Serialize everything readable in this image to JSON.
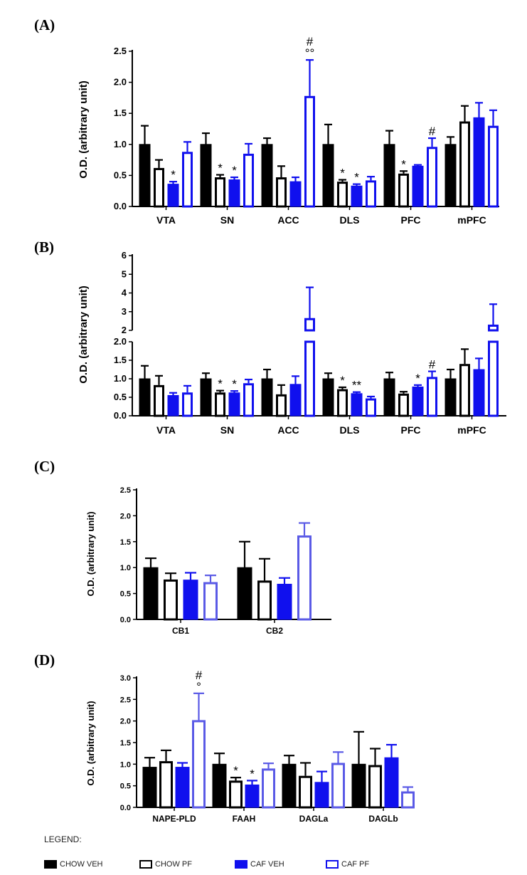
{
  "colors": {
    "chow_veh": "#000000",
    "chow_pf": "#000000",
    "caf_veh": "#1010ee",
    "caf_pf": "#1010ee",
    "caf_pf_light": "#5a5ae6"
  },
  "legend": {
    "title": "LEGEND:",
    "items": [
      {
        "label": "CHOW VEH",
        "fill": "#000000",
        "stroke": "#000000"
      },
      {
        "label": "CHOW PF",
        "fill": "#ffffff",
        "stroke": "#000000"
      },
      {
        "label": "CAF VEH",
        "fill": "#1010ee",
        "stroke": "#1010ee"
      },
      {
        "label": "CAF PF",
        "fill": "#ffffff",
        "stroke": "#1010ee"
      }
    ]
  },
  "chart_data": [
    {
      "panel": "(A)",
      "type": "bar",
      "ylabel": "O.D. (arbitrary unit)",
      "ylim": [
        0,
        2.5
      ],
      "yticks": [
        "0.0",
        "0.5",
        "1.0",
        "1.5",
        "2.0",
        "2.5"
      ],
      "categories": [
        "VTA",
        "SN",
        "ACC",
        "DLS",
        "PFC",
        "mPFC"
      ],
      "series": [
        {
          "name": "CHOW VEH",
          "style": "filled-black",
          "values": [
            1.0,
            1.0,
            1.0,
            1.0,
            1.0,
            1.0
          ],
          "errors": [
            0.3,
            0.18,
            0.1,
            0.32,
            0.22,
            0.12
          ]
        },
        {
          "name": "CHOW PF",
          "style": "open-black",
          "values": [
            0.62,
            0.47,
            0.47,
            0.4,
            0.53,
            1.37
          ],
          "errors": [
            0.13,
            0.04,
            0.18,
            0.03,
            0.04,
            0.25
          ]
        },
        {
          "name": "CAF VEH",
          "style": "filled-blue",
          "values": [
            0.36,
            0.43,
            0.4,
            0.33,
            0.65,
            1.43
          ],
          "errors": [
            0.04,
            0.04,
            0.07,
            0.03,
            0.02,
            0.24
          ]
        },
        {
          "name": "CAF PF",
          "style": "open-blue",
          "values": [
            0.88,
            0.85,
            1.78,
            0.42,
            0.96,
            1.3
          ],
          "errors": [
            0.16,
            0.16,
            0.58,
            0.06,
            0.14,
            0.25
          ]
        }
      ],
      "annotations": [
        {
          "category": 0,
          "series": 2,
          "text": "*"
        },
        {
          "category": 1,
          "series": 1,
          "text": "*"
        },
        {
          "category": 1,
          "series": 2,
          "text": "*"
        },
        {
          "category": 2,
          "series": 3,
          "text": "°°"
        },
        {
          "category": 2,
          "series": 3,
          "text": "#",
          "row": 2
        },
        {
          "category": 3,
          "series": 1,
          "text": "*"
        },
        {
          "category": 3,
          "series": 2,
          "text": "*"
        },
        {
          "category": 4,
          "series": 1,
          "text": "*"
        },
        {
          "category": 4,
          "series": 3,
          "text": "#"
        }
      ]
    },
    {
      "panel": "(B)",
      "type": "bar",
      "ylabel": "O.D. (arbitrary unit)",
      "yticks_lower": [
        "0.0",
        "0.5",
        "1.0",
        "1.5",
        "2.0"
      ],
      "yticks_upper": [
        "2",
        "3",
        "4",
        "5",
        "6"
      ],
      "ylim_lower": [
        0,
        2.0
      ],
      "ylim_upper": [
        2,
        6
      ],
      "categories": [
        "VTA",
        "SN",
        "ACC",
        "DLS",
        "PFC",
        "mPFC"
      ],
      "series": [
        {
          "name": "CHOW VEH",
          "style": "filled-black",
          "values": [
            1.0,
            1.0,
            1.0,
            1.0,
            1.0,
            1.0
          ],
          "errors": [
            0.35,
            0.15,
            0.25,
            0.15,
            0.17,
            0.25
          ]
        },
        {
          "name": "CHOW PF",
          "style": "open-black",
          "values": [
            0.83,
            0.63,
            0.58,
            0.72,
            0.6,
            1.4
          ],
          "errors": [
            0.25,
            0.05,
            0.25,
            0.05,
            0.05,
            0.4
          ]
        },
        {
          "name": "CAF VEH",
          "style": "filled-blue",
          "values": [
            0.55,
            0.62,
            0.85,
            0.6,
            0.78,
            1.25
          ],
          "errors": [
            0.07,
            0.05,
            0.22,
            0.04,
            0.05,
            0.3
          ]
        },
        {
          "name": "CAF PF",
          "style": "open-blue",
          "values": [
            0.63,
            0.88,
            2.6,
            0.47,
            1.05,
            2.25
          ],
          "errors": [
            0.18,
            0.1,
            1.7,
            0.05,
            0.15,
            1.15
          ]
        }
      ],
      "annotations": [
        {
          "category": 1,
          "series": 1,
          "text": "*"
        },
        {
          "category": 1,
          "series": 2,
          "text": "*"
        },
        {
          "category": 3,
          "series": 1,
          "text": "*"
        },
        {
          "category": 3,
          "series": 2,
          "text": "**"
        },
        {
          "category": 4,
          "series": 2,
          "text": "*"
        },
        {
          "category": 4,
          "series": 3,
          "text": "#"
        }
      ]
    },
    {
      "panel": "(C)",
      "type": "bar",
      "ylabel": "O.D. (arbitrary unit)",
      "ylim": [
        0,
        2.5
      ],
      "yticks": [
        "0.0",
        "0.5",
        "1.0",
        "1.5",
        "2.0",
        "2.5"
      ],
      "categories": [
        "CB1",
        "CB2"
      ],
      "series": [
        {
          "name": "CHOW VEH",
          "style": "filled-black",
          "values": [
            1.0,
            1.0
          ],
          "errors": [
            0.18,
            0.5
          ]
        },
        {
          "name": "CHOW PF",
          "style": "open-black",
          "values": [
            0.77,
            0.75
          ],
          "errors": [
            0.12,
            0.42
          ]
        },
        {
          "name": "CAF VEH",
          "style": "filled-blue",
          "values": [
            0.76,
            0.68
          ],
          "errors": [
            0.14,
            0.12
          ]
        },
        {
          "name": "CAF PF",
          "style": "open-blue-light",
          "values": [
            0.72,
            1.62
          ],
          "errors": [
            0.13,
            0.24
          ]
        }
      ],
      "annotations": []
    },
    {
      "panel": "(D)",
      "type": "bar",
      "ylabel": "O.D. (arbitrary unit)",
      "ylim": [
        0,
        3.0
      ],
      "yticks": [
        "0.0",
        "0.5",
        "1.0",
        "1.5",
        "2.0",
        "2.5",
        "3.0"
      ],
      "categories": [
        "NAPE-PLD",
        "FAAH",
        "DAGLa",
        "DAGLb"
      ],
      "series": [
        {
          "name": "CHOW VEH",
          "style": "filled-black",
          "values": [
            0.93,
            1.0,
            1.0,
            1.0
          ],
          "errors": [
            0.22,
            0.25,
            0.2,
            0.75
          ]
        },
        {
          "name": "CHOW PF",
          "style": "open-black",
          "values": [
            1.07,
            0.62,
            0.73,
            0.98
          ],
          "errors": [
            0.25,
            0.07,
            0.3,
            0.38
          ]
        },
        {
          "name": "CAF VEH",
          "style": "filled-blue",
          "values": [
            0.93,
            0.52,
            0.58,
            1.15
          ],
          "errors": [
            0.1,
            0.1,
            0.25,
            0.3
          ]
        },
        {
          "name": "CAF PF",
          "style": "open-blue-light",
          "values": [
            2.02,
            0.9,
            1.03,
            0.37
          ],
          "errors": [
            0.62,
            0.12,
            0.25,
            0.1
          ]
        }
      ],
      "annotations": [
        {
          "category": 0,
          "series": 3,
          "text": "°"
        },
        {
          "category": 0,
          "series": 3,
          "text": "#",
          "row": 2
        },
        {
          "category": 1,
          "series": 1,
          "text": "*"
        },
        {
          "category": 1,
          "series": 2,
          "text": "*"
        }
      ]
    }
  ]
}
